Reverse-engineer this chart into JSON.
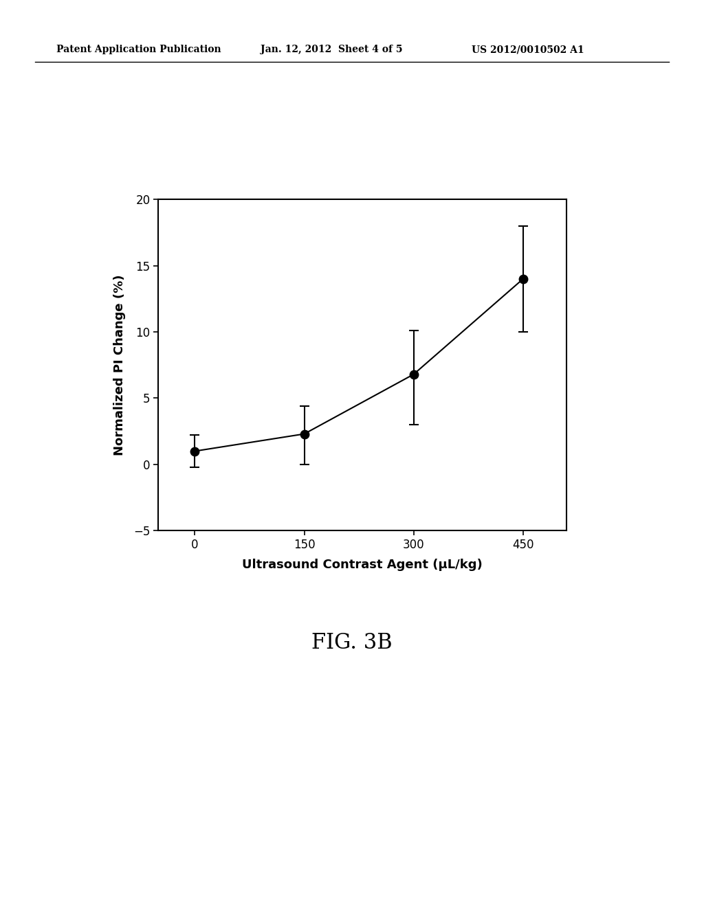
{
  "x": [
    0,
    150,
    300,
    450
  ],
  "y": [
    1.0,
    2.3,
    6.8,
    14.0
  ],
  "yerr_upper": [
    1.2,
    2.1,
    3.3,
    4.0
  ],
  "yerr_lower": [
    1.2,
    2.3,
    3.8,
    4.0
  ],
  "xlabel": "Ultrasound Contrast Agent (μL/kg)",
  "ylabel": "Normalized PI Change (%)",
  "xlim": [
    -50,
    510
  ],
  "ylim": [
    -5,
    20
  ],
  "yticks": [
    -5,
    0,
    5,
    10,
    15,
    20
  ],
  "xticks": [
    0,
    150,
    300,
    450
  ],
  "fig_caption": "FIG. 3B",
  "header_left": "Patent Application Publication",
  "header_mid": "Jan. 12, 2012  Sheet 4 of 5",
  "header_right": "US 2012/0010502 A1",
  "bg_color": "#ffffff",
  "line_color": "#000000",
  "marker_color": "#000000",
  "marker_size": 9,
  "line_width": 1.5
}
